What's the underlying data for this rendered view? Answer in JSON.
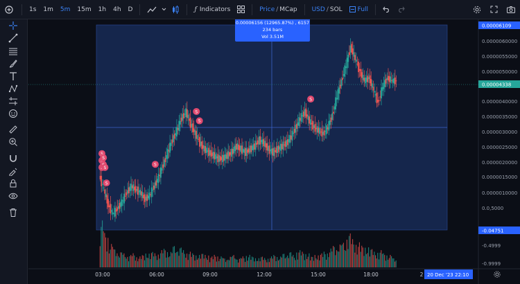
{
  "toolbar": {
    "intervals": [
      "1s",
      "1m",
      "5m",
      "15m",
      "1h",
      "4h",
      "D"
    ],
    "active_interval": "5m",
    "indicators_label": "Indicators",
    "price_label": "Price",
    "mcap_label": "MCap",
    "usd_label": "USD",
    "sol_label": "SOL",
    "full_label": "Full",
    "slash": "/"
  },
  "tooltip": {
    "line1": "0.00006156 (12965.87%) , 6157",
    "line2": "234 bars",
    "line3": "Vol 3.51M"
  },
  "price_axis": {
    "ticks": [
      "0.0000060000",
      "0.0000055000",
      "0.0000050000",
      "0.0000045000",
      "0.0000040000",
      "0.0000035000",
      "0.0000030000",
      "0.0000025000",
      "0.0000020000",
      "0.0000015000",
      "0.0000010000",
      "0.0,5000",
      "-0.4999",
      "-0.9999"
    ],
    "crosshair_top_label": "0.00006109",
    "current_price_label": "0.00004338",
    "bottom_label": "-0.04751"
  },
  "time_axis": {
    "ticks": [
      "03:00",
      "06:00",
      "09:00",
      "12:00",
      "15:00",
      "18:00",
      "2"
    ],
    "crosshair_label": "20 Dec '23",
    "crosshair_time": "22:10"
  },
  "markers": {
    "sell_letter": "S"
  },
  "colors": {
    "up": "#26a69a",
    "down": "#ef5350",
    "accent": "#2962ff",
    "selection": "#1f3a7a",
    "sell_marker": "#e04a6f"
  },
  "chart_data": {
    "type": "candlestick",
    "x": [
      "02:45",
      "03:00",
      "03:15",
      "03:30",
      "03:45",
      "04:00",
      "04:15",
      "04:30",
      "04:45",
      "05:00",
      "05:15",
      "05:30",
      "05:45",
      "06:00",
      "06:15",
      "06:30",
      "06:45",
      "07:00",
      "07:15",
      "07:30",
      "07:45",
      "08:00",
      "08:15",
      "08:30",
      "08:45",
      "09:00",
      "09:15",
      "09:30",
      "09:45",
      "10:00",
      "10:15",
      "10:30",
      "10:45",
      "11:00",
      "11:15",
      "11:30",
      "11:45",
      "12:00",
      "12:15",
      "12:30",
      "12:45",
      "13:00",
      "13:15",
      "13:30",
      "13:45",
      "14:00",
      "14:15",
      "14:30",
      "14:45",
      "15:00",
      "15:15",
      "15:30",
      "15:45",
      "16:00",
      "16:15",
      "16:30",
      "16:45",
      "17:00",
      "17:15",
      "17:30",
      "17:45",
      "18:00",
      "18:15",
      "18:30",
      "18:45"
    ],
    "close": [
      8e-07,
      3e-07,
      0.0,
      2e-07,
      4e-07,
      7e-07,
      9e-07,
      8e-07,
      7e-07,
      5e-07,
      6e-07,
      9e-07,
      1.2e-06,
      1.6e-06,
      2e-06,
      2.4e-06,
      2.7e-06,
      3.1e-06,
      3.3e-06,
      2.9e-06,
      2.6e-06,
      2.3e-06,
      2.1e-06,
      2e-06,
      1.9e-06,
      1.8e-06,
      1.8e-06,
      1.9e-06,
      2e-06,
      2.2e-06,
      2.1e-06,
      2e-06,
      2.1e-06,
      2.2e-06,
      2.4e-06,
      2.3e-06,
      2.1e-06,
      2e-06,
      2.1e-06,
      2.2e-06,
      2.3e-06,
      2.5e-06,
      2.8e-06,
      3.1e-06,
      3.3e-06,
      3e-06,
      2.8e-06,
      2.7e-06,
      2.6e-06,
      2.8e-06,
      3.2e-06,
      3.8e-06,
      4.3e-06,
      4.8e-06,
      5.4e-06,
      5e-06,
      4.6e-06,
      4.3e-06,
      4.4e-06,
      4e-06,
      3.6e-06,
      4.1e-06,
      4.4e-06,
      4.3e-06,
      4.3e-06
    ],
    "volume": [
      3.0,
      2.2,
      1.5,
      1.2,
      1.0,
      0.9,
      0.8,
      0.9,
      0.7,
      0.8,
      0.9,
      1.0,
      0.9,
      1.1,
      1.2,
      1.0,
      1.4,
      1.3,
      1.1,
      1.0,
      0.9,
      0.8,
      0.9,
      0.8,
      0.7,
      0.8,
      0.7,
      0.6,
      0.7,
      0.8,
      0.6,
      0.7,
      0.8,
      0.7,
      0.6,
      0.7,
      0.6,
      0.7,
      0.8,
      0.7,
      0.9,
      1.0,
      0.8,
      1.1,
      1.0,
      0.9,
      0.7,
      0.8,
      0.9,
      1.0,
      1.2,
      1.4,
      1.5,
      1.6,
      2.2,
      1.8,
      1.6,
      1.4,
      1.3,
      1.2,
      1.0,
      1.1,
      0.9,
      0.8,
      0.6
    ],
    "sell_marker_times": [
      "02:45",
      "02:45",
      "02:45",
      "02:50",
      "02:50",
      "02:55",
      "03:00",
      "05:40",
      "07:55",
      "08:05",
      "14:10"
    ]
  }
}
